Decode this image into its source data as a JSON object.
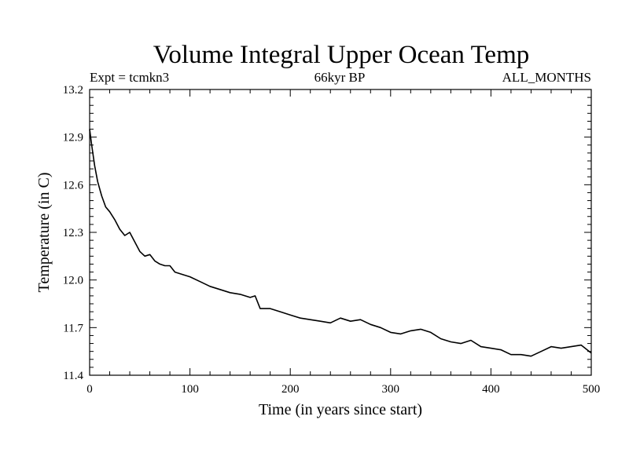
{
  "chart_data": {
    "type": "line",
    "title": "Volume Integral Upper Ocean Temp",
    "subtitle_left": "Expt = tcmkn3",
    "subtitle_center": "66kyr BP",
    "subtitle_right": "ALL_MONTHS",
    "xlabel": "Time (in years since start)",
    "ylabel": "Temperature (in C)",
    "xlim": [
      0,
      500
    ],
    "ylim": [
      11.4,
      13.2
    ],
    "x_ticks": [
      0,
      100,
      200,
      300,
      400,
      500
    ],
    "y_ticks": [
      "11.4",
      "11.7",
      "12.0",
      "12.3",
      "12.6",
      "12.9",
      "13.2"
    ],
    "grid": false,
    "series": [
      {
        "color": "#000000",
        "x": [
          0,
          2,
          5,
          8,
          12,
          16,
          20,
          25,
          30,
          35,
          40,
          45,
          50,
          55,
          60,
          65,
          70,
          75,
          80,
          85,
          90,
          95,
          100,
          110,
          120,
          130,
          140,
          150,
          160,
          165,
          170,
          180,
          190,
          200,
          210,
          220,
          230,
          240,
          250,
          260,
          270,
          280,
          290,
          300,
          310,
          320,
          330,
          340,
          350,
          360,
          370,
          380,
          390,
          400,
          410,
          420,
          430,
          440,
          450,
          460,
          470,
          480,
          490,
          500
        ],
        "y": [
          12.95,
          12.85,
          12.72,
          12.62,
          12.53,
          12.46,
          12.43,
          12.38,
          12.32,
          12.28,
          12.3,
          12.24,
          12.18,
          12.15,
          12.16,
          12.12,
          12.1,
          12.09,
          12.09,
          12.05,
          12.04,
          12.03,
          12.02,
          11.99,
          11.96,
          11.94,
          11.92,
          11.91,
          11.89,
          11.9,
          11.82,
          11.82,
          11.8,
          11.78,
          11.76,
          11.75,
          11.74,
          11.73,
          11.76,
          11.74,
          11.75,
          11.72,
          11.7,
          11.67,
          11.66,
          11.68,
          11.69,
          11.67,
          11.63,
          11.61,
          11.6,
          11.62,
          11.58,
          11.57,
          11.56,
          11.53,
          11.53,
          11.52,
          11.55,
          11.58,
          11.57,
          11.58,
          11.59,
          11.54
        ]
      }
    ]
  }
}
